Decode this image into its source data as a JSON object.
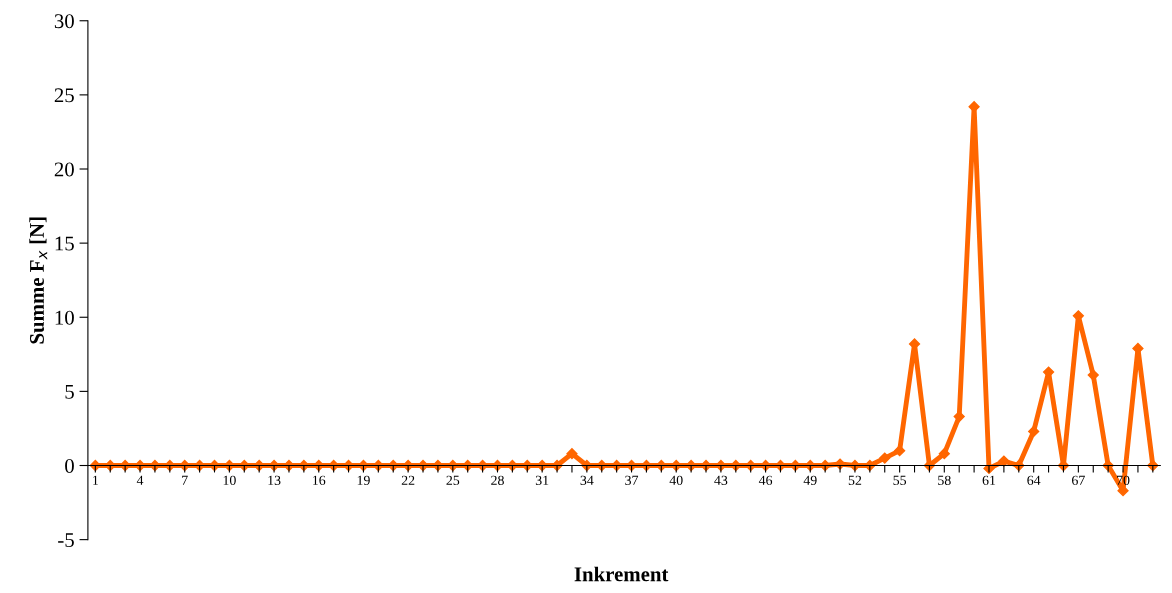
{
  "chart_data": {
    "type": "line",
    "xlabel": "Inkrement",
    "ylabel": "Summe F$_{x}$ [N]",
    "categories": [
      "1",
      null,
      null,
      "4",
      null,
      null,
      "7",
      null,
      null,
      "10",
      null,
      null,
      "13",
      null,
      null,
      "16",
      null,
      null,
      "19",
      null,
      null,
      "22",
      null,
      null,
      "25",
      null,
      null,
      "28",
      null,
      null,
      "31",
      null,
      null,
      "34",
      null,
      null,
      "37",
      null,
      null,
      "40",
      null,
      null,
      "43",
      null,
      null,
      "46",
      null,
      null,
      "49",
      null,
      null,
      "52",
      null,
      null,
      "55",
      null,
      null,
      "58",
      null,
      null,
      "61",
      null,
      null,
      "64",
      null,
      null,
      "67",
      null,
      null,
      "70",
      null,
      null
    ],
    "series": [
      {
        "color": "#ff6600",
        "values": [
          0,
          0,
          0,
          0,
          0,
          0,
          0,
          0,
          0,
          0,
          0,
          0,
          0,
          0,
          0,
          0,
          0,
          0,
          0,
          0,
          0,
          0,
          0,
          0,
          0,
          0,
          0,
          0,
          0,
          0,
          0,
          0,
          0.8,
          0,
          0,
          0,
          0,
          0,
          0,
          0,
          0,
          0,
          0,
          0,
          0,
          0,
          0,
          0,
          0,
          0,
          0.1,
          0,
          0,
          0.5,
          1.0,
          8.2,
          0,
          0.8,
          3.3,
          24.2,
          -0.2,
          0.3,
          0,
          2.3,
          6.3,
          0,
          10.1,
          6.1,
          0,
          -1.7,
          7.9,
          0
        ]
      }
    ],
    "ylim": [
      -5,
      30
    ],
    "yticks": [
      -5,
      0,
      5,
      10,
      15,
      20,
      25,
      30
    ],
    "marker": "diamond",
    "line_style": "solid",
    "grid": false,
    "legend": false
  }
}
